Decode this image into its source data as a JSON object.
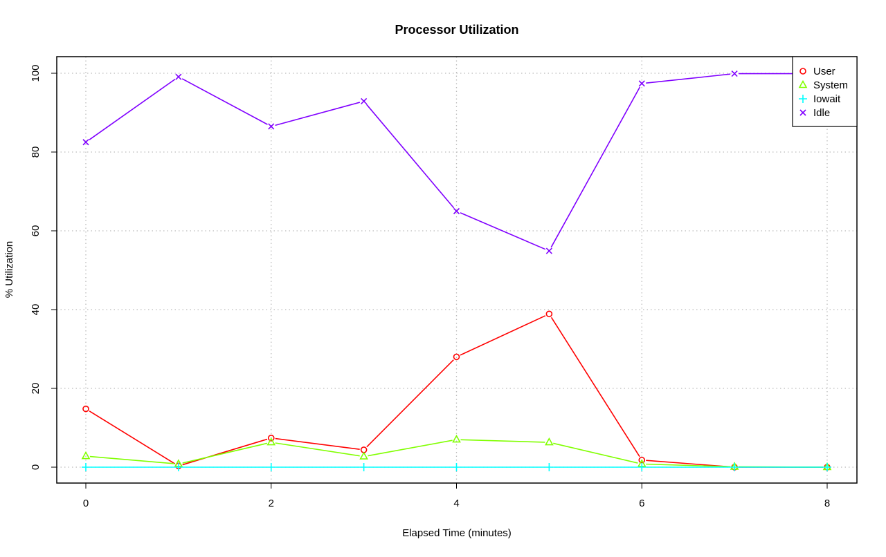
{
  "chart_data": {
    "type": "line",
    "title": "Processor Utilization",
    "xlabel": "Elapsed Time (minutes)",
    "ylabel": "% Utilization",
    "xlim": [
      0,
      8
    ],
    "ylim": [
      0,
      100
    ],
    "x_ticks": [
      "0",
      "2",
      "4",
      "6",
      "8"
    ],
    "y_ticks": [
      "0",
      "20",
      "40",
      "60",
      "80",
      "100"
    ],
    "grid": true,
    "legend_position": "top-right",
    "x": [
      0,
      1,
      2,
      3,
      4,
      5,
      6,
      7,
      8
    ],
    "series": [
      {
        "name": "User",
        "color": "#ff0000",
        "marker": "circle",
        "values": [
          14.8,
          0.3,
          7.4,
          4.4,
          28.0,
          38.9,
          1.8,
          0.0,
          0.0
        ]
      },
      {
        "name": "System",
        "color": "#80ff00",
        "marker": "triangle",
        "values": [
          2.8,
          0.8,
          6.3,
          2.7,
          7.0,
          6.3,
          0.8,
          0.1,
          0.0
        ]
      },
      {
        "name": "Iowait",
        "color": "#00ffff",
        "marker": "plus",
        "values": [
          0,
          0,
          0,
          0,
          0,
          0,
          0,
          0,
          0
        ]
      },
      {
        "name": "Idle",
        "color": "#8000ff",
        "marker": "cross",
        "values": [
          82.5,
          99.1,
          86.5,
          92.9,
          65.0,
          54.9,
          97.4,
          99.9,
          99.9
        ]
      }
    ]
  }
}
